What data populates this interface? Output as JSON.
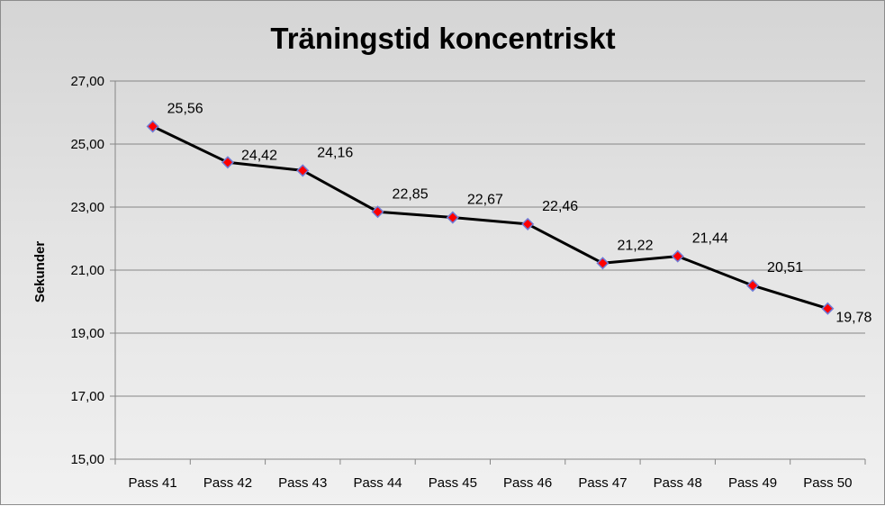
{
  "chart_data": {
    "type": "line",
    "title": "Träningstid koncentriskt",
    "xlabel": "",
    "ylabel": "Sekunder",
    "categories": [
      "Pass 41",
      "Pass 42",
      "Pass 43",
      "Pass 44",
      "Pass 45",
      "Pass 46",
      "Pass 47",
      "Pass 48",
      "Pass 49",
      "Pass 50"
    ],
    "values": [
      25.56,
      24.42,
      24.16,
      22.85,
      22.67,
      22.46,
      21.22,
      21.44,
      20.51,
      19.78
    ],
    "value_labels": [
      "25,56",
      "24,42",
      "24,16",
      "22,85",
      "22,67",
      "22,46",
      "21,22",
      "21,44",
      "20,51",
      "19,78"
    ],
    "ylim": [
      15,
      27
    ],
    "y_ticks": [
      15,
      17,
      19,
      21,
      23,
      25,
      27
    ],
    "y_tick_labels": [
      "15,00",
      "17,00",
      "19,00",
      "21,00",
      "23,00",
      "25,00",
      "27,00"
    ],
    "grid": true,
    "legend": "none",
    "colors": {
      "line": "#000000",
      "marker_fill": "#ff0000",
      "marker_stroke": "#6f7ad6",
      "gridline": "#868686",
      "axis": "#868686"
    }
  }
}
